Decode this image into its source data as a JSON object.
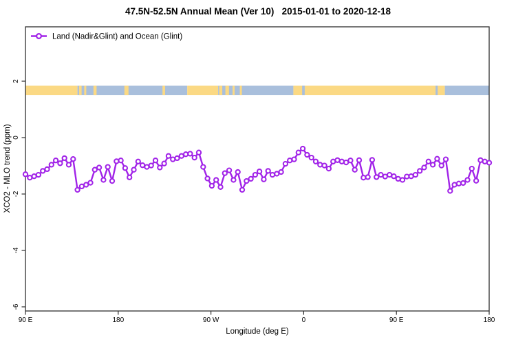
{
  "chart_data": {
    "type": "line",
    "title": "47.5N-52.5N Annual Mean (Ver 10)   2015-01-01 to 2020-12-18",
    "xlabel": "Longitude (deg E)",
    "ylabel": "XCO2 - MLO trend (ppm)",
    "x_domain_deg_east": [
      90,
      540
    ],
    "ylim": [
      -6.15,
      3.9
    ],
    "grid": false,
    "legend": {
      "label": "Land (Nadir&Glint) and Ocean (Glint)",
      "marker": "open-circle",
      "position": "top-left-inside"
    },
    "colors": {
      "series": "#A123E8",
      "axis": "#2e2e2e",
      "text": "#000000",
      "marker_fill": "#ffffff"
    },
    "x_ticks": [
      {
        "pos": 90,
        "label": "90 E"
      },
      {
        "pos": 180,
        "label": "180"
      },
      {
        "pos": 270,
        "label": "90 W"
      },
      {
        "pos": 360,
        "label": "0"
      },
      {
        "pos": 450,
        "label": "90 E"
      },
      {
        "pos": 540,
        "label": "180"
      }
    ],
    "y_ticks": [
      {
        "pos": 2,
        "label": "2"
      },
      {
        "pos": 0,
        "label": "0"
      },
      {
        "pos": -2,
        "label": "-2"
      },
      {
        "pos": -4,
        "label": "-4"
      },
      {
        "pos": -6,
        "label": "-6"
      }
    ],
    "band": {
      "description": "land/ocean strip along 47.5N-52.5N",
      "top_value": 1.84,
      "bottom_value": 1.51,
      "colors": {
        "land": "#FBD984",
        "ocean": "#A9BFDC"
      },
      "segments": [
        {
          "from": 90,
          "to": 140.5,
          "type": "land"
        },
        {
          "from": 140.5,
          "to": 247,
          "type": "ocean"
        },
        {
          "from": 142,
          "to": 144.5,
          "type": "land"
        },
        {
          "from": 147,
          "to": 149,
          "type": "land"
        },
        {
          "from": 156,
          "to": 159,
          "type": "land"
        },
        {
          "from": 186,
          "to": 190,
          "type": "land"
        },
        {
          "from": 223,
          "to": 225.5,
          "type": "land"
        },
        {
          "from": 247,
          "to": 277,
          "type": "land"
        },
        {
          "from": 277,
          "to": 307,
          "type": "ocean"
        },
        {
          "from": 278,
          "to": 281,
          "type": "land"
        },
        {
          "from": 284,
          "to": 287.5,
          "type": "land"
        },
        {
          "from": 291,
          "to": 293,
          "type": "land"
        },
        {
          "from": 298,
          "to": 300,
          "type": "land"
        },
        {
          "from": 307,
          "to": 350,
          "type": "ocean"
        },
        {
          "from": 350,
          "to": 497,
          "type": "land"
        },
        {
          "from": 358.5,
          "to": 361,
          "type": "ocean"
        },
        {
          "from": 488,
          "to": 490,
          "type": "ocean"
        },
        {
          "from": 497,
          "to": 540,
          "type": "ocean"
        }
      ]
    },
    "series": [
      {
        "name": "Land (Nadir&Glint) and Ocean (Glint)",
        "x_start_deg": 90,
        "x_end_deg": 540,
        "values": [
          -1.3,
          -1.42,
          -1.37,
          -1.32,
          -1.18,
          -1.12,
          -0.96,
          -0.81,
          -0.91,
          -0.73,
          -0.96,
          -0.76,
          -1.85,
          -1.73,
          -1.67,
          -1.6,
          -1.14,
          -1.06,
          -1.5,
          -1.04,
          -1.54,
          -0.84,
          -0.81,
          -1.08,
          -1.41,
          -1.14,
          -0.85,
          -0.98,
          -1.04,
          -0.99,
          -0.81,
          -1.06,
          -0.92,
          -0.65,
          -0.77,
          -0.73,
          -0.65,
          -0.59,
          -0.57,
          -0.71,
          -0.53,
          -1.04,
          -1.45,
          -1.71,
          -1.5,
          -1.75,
          -1.26,
          -1.16,
          -1.5,
          -1.22,
          -1.85,
          -1.54,
          -1.46,
          -1.32,
          -1.2,
          -1.48,
          -1.18,
          -1.32,
          -1.28,
          -1.22,
          -0.93,
          -0.81,
          -0.77,
          -0.53,
          -0.39,
          -0.61,
          -0.71,
          -0.85,
          -0.96,
          -0.99,
          -1.1,
          -0.85,
          -0.8,
          -0.85,
          -0.88,
          -0.81,
          -1.14,
          -0.8,
          -1.42,
          -1.4,
          -0.79,
          -1.4,
          -1.32,
          -1.38,
          -1.32,
          -1.37,
          -1.46,
          -1.5,
          -1.38,
          -1.37,
          -1.32,
          -1.18,
          -1.06,
          -0.85,
          -0.96,
          -0.75,
          -0.99,
          -0.77,
          -1.89,
          -1.67,
          -1.63,
          -1.61,
          -1.5,
          -1.1,
          -1.53,
          -0.8,
          -0.85,
          -0.89
        ]
      }
    ]
  }
}
